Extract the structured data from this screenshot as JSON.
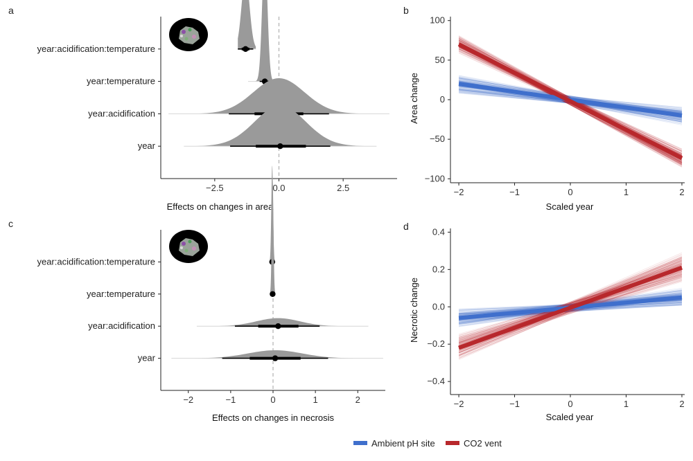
{
  "figure": {
    "legend": [
      {
        "name": "Ambient pH site",
        "color": "#3f6fcc"
      },
      {
        "name": "CO2 vent",
        "color": "#b8282c"
      }
    ]
  },
  "chart_data": [
    {
      "panel": "a",
      "type": "halfeye",
      "terms": [
        "year:acidification:temperature",
        "year:temperature",
        "year:acidification",
        "year"
      ],
      "estimates": [
        {
          "term": "year:acidification:temperature",
          "median": -1.3,
          "ci66": [
            -1.45,
            -1.15
          ],
          "ci95": [
            -1.6,
            -1.0
          ],
          "range": [
            -1.6,
            -0.9
          ],
          "peak": 0.45
        },
        {
          "term": "year:temperature",
          "median": -0.55,
          "ci66": [
            -0.65,
            -0.45
          ],
          "ci95": [
            -0.75,
            -0.35
          ],
          "range": [
            -1.2,
            -0.1
          ],
          "peak": 0.8
        },
        {
          "term": "year:acidification",
          "median": 0.0,
          "ci66": [
            -0.95,
            0.95
          ],
          "ci95": [
            -1.95,
            1.95
          ],
          "range": [
            -4.3,
            4.3
          ],
          "peak": 0.22
        },
        {
          "term": "year",
          "median": 0.05,
          "ci66": [
            -0.9,
            1.05
          ],
          "ci95": [
            -1.9,
            2.0
          ],
          "range": [
            -3.7,
            3.8
          ],
          "peak": 0.25
        }
      ],
      "xlabel": "Effects on changes in area",
      "xlim": [
        -4.6,
        4.6
      ],
      "xticks": [
        "−2.5",
        "0.0",
        "2.5"
      ],
      "xtick_values": [
        -2.5,
        0.0,
        2.5
      ],
      "reference_line": 0
    },
    {
      "panel": "b",
      "type": "line",
      "x": [
        -2,
        2
      ],
      "series": [
        {
          "name": "Ambient pH site",
          "values": [
            20,
            -20
          ],
          "draws_spread": 14
        },
        {
          "name": "CO2 vent",
          "values": [
            70,
            -74
          ],
          "draws_spread": 14
        }
      ],
      "xlabel": "Scaled year",
      "ylabel": "Area change",
      "xlim": [
        -2.15,
        2.05
      ],
      "ylim": [
        -105,
        105
      ],
      "xticks": [
        "−2",
        "−1",
        "0",
        "1",
        "2"
      ],
      "xtick_values": [
        -2,
        -1,
        0,
        1,
        2
      ],
      "yticks": [
        "100",
        "50",
        "0",
        "−50",
        "−100"
      ],
      "ytick_values": [
        100,
        50,
        0,
        -50,
        -100
      ]
    },
    {
      "panel": "c",
      "type": "halfeye",
      "terms": [
        "year:acidification:temperature",
        "year:temperature",
        "year:acidification",
        "year"
      ],
      "estimates": [
        {
          "term": "year:acidification:temperature",
          "median": -0.02,
          "ci66": [
            -0.04,
            0.0
          ],
          "ci95": [
            -0.06,
            0.02
          ],
          "range": [
            -0.1,
            0.06
          ],
          "peak": 0.6
        },
        {
          "term": "year:temperature",
          "median": -0.01,
          "ci66": [
            -0.03,
            0.01
          ],
          "ci95": [
            -0.05,
            0.03
          ],
          "range": [
            -0.08,
            0.06
          ],
          "peak": 0.7
        },
        {
          "term": "year:acidification",
          "median": 0.12,
          "ci66": [
            -0.35,
            0.6
          ],
          "ci95": [
            -0.9,
            1.1
          ],
          "range": [
            -1.8,
            2.25
          ],
          "peak": 0.05
        },
        {
          "term": "year",
          "median": 0.05,
          "ci66": [
            -0.55,
            0.65
          ],
          "ci95": [
            -1.2,
            1.3
          ],
          "range": [
            -2.4,
            2.6
          ],
          "peak": 0.05
        }
      ],
      "xlabel": "Effects on changes in necrosis",
      "xlim": [
        -2.65,
        2.65
      ],
      "xticks": [
        "−2",
        "−1",
        "0",
        "1",
        "2"
      ],
      "xtick_values": [
        -2,
        -1,
        0,
        1,
        2
      ],
      "reference_line": 0
    },
    {
      "panel": "d",
      "type": "line",
      "x": [
        -2,
        2
      ],
      "series": [
        {
          "name": "Ambient pH site",
          "values": [
            -0.06,
            0.05
          ],
          "draws_spread": 0.06
        },
        {
          "name": "CO2 vent",
          "values": [
            -0.22,
            0.21
          ],
          "draws_spread": 0.09
        }
      ],
      "xlabel": "Scaled year",
      "ylabel": "Necrotic change",
      "xlim": [
        -2.15,
        2.05
      ],
      "ylim": [
        -0.47,
        0.42
      ],
      "xticks": [
        "−2",
        "−1",
        "0",
        "1",
        "2"
      ],
      "xtick_values": [
        -2,
        -1,
        0,
        1,
        2
      ],
      "yticks": [
        "0.4",
        "0.2",
        "0.0",
        "−0.2",
        "−0.4"
      ],
      "ytick_values": [
        0.4,
        0.2,
        0.0,
        -0.2,
        -0.4
      ]
    }
  ]
}
